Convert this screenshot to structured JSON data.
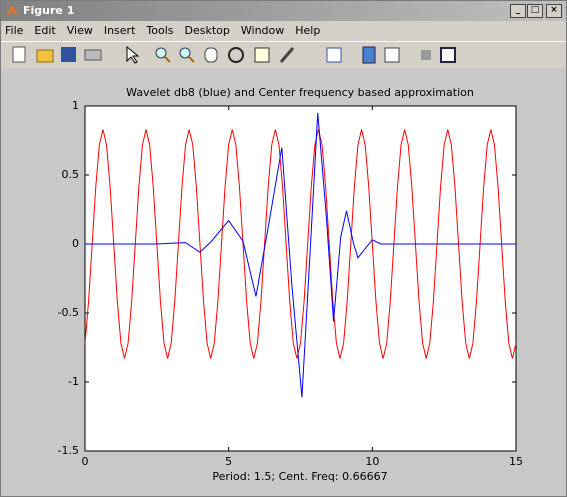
{
  "window": {
    "title": "Figure 1",
    "menu": [
      "File",
      "Edit",
      "View",
      "Insert",
      "Tools",
      "Desktop",
      "Window",
      "Help"
    ]
  },
  "chart_data": {
    "type": "line",
    "title": "Wavelet db8 (blue) and Center frequency based approximation",
    "xlabel": "Period: 1.5; Cent. Freq: 0.66667",
    "xlim": [
      0,
      15
    ],
    "ylim": [
      -1.5,
      1
    ],
    "xticks": [
      0,
      5,
      10,
      15
    ],
    "yticks": [
      -1.5,
      -1,
      -0.5,
      0,
      0.5,
      1
    ],
    "series": [
      {
        "color": "#ff0000",
        "x": [
          0,
          0.125,
          0.25,
          0.375,
          0.5,
          0.625,
          0.75,
          0.875,
          1,
          1.125,
          1.25,
          1.375,
          1.5,
          1.625,
          1.75,
          1.875,
          2,
          2.125,
          2.25,
          2.375,
          2.5,
          2.625,
          2.75,
          2.875,
          3,
          3.125,
          3.25,
          3.375,
          3.5,
          3.625,
          3.75,
          3.875,
          4,
          4.125,
          4.25,
          4.375,
          4.5,
          4.625,
          4.75,
          4.875,
          5,
          5.125,
          5.25,
          5.375,
          5.5,
          5.625,
          5.75,
          5.875,
          6,
          6.125,
          6.25,
          6.375,
          6.5,
          6.625,
          6.75,
          6.875,
          7,
          7.125,
          7.25,
          7.375,
          7.5,
          7.625,
          7.75,
          7.875,
          8,
          8.125,
          8.25,
          8.375,
          8.5,
          8.625,
          8.75,
          8.875,
          9,
          9.125,
          9.25,
          9.375,
          9.5,
          9.625,
          9.75,
          9.875,
          10,
          10.125,
          10.25,
          10.375,
          10.5,
          10.625,
          10.75,
          10.875,
          11,
          11.125,
          11.25,
          11.375,
          11.5,
          11.625,
          11.75,
          11.875,
          12,
          12.125,
          12.25,
          12.375,
          12.5,
          12.625,
          12.75,
          12.875,
          13,
          13.125,
          13.25,
          13.375,
          13.5,
          13.625,
          13.75,
          13.875,
          14,
          14.125,
          14.25,
          14.375,
          14.5,
          14.625,
          14.75,
          14.875,
          15
        ],
        "values": [
          -0.719,
          -0.415,
          0,
          0.415,
          0.719,
          0.83,
          0.719,
          0.415,
          0,
          -0.415,
          -0.719,
          -0.83,
          -0.719,
          -0.415,
          0,
          0.415,
          0.719,
          0.83,
          0.719,
          0.415,
          0,
          -0.415,
          -0.719,
          -0.83,
          -0.719,
          -0.415,
          0,
          0.415,
          0.719,
          0.83,
          0.719,
          0.415,
          0,
          -0.415,
          -0.719,
          -0.83,
          -0.719,
          -0.415,
          0,
          0.415,
          0.719,
          0.83,
          0.719,
          0.415,
          0,
          -0.415,
          -0.719,
          -0.83,
          -0.719,
          -0.415,
          0,
          0.415,
          0.719,
          0.83,
          0.719,
          0.415,
          0,
          -0.415,
          -0.719,
          -0.83,
          -0.719,
          -0.415,
          0,
          0.415,
          0.719,
          0.83,
          0.719,
          0.415,
          0,
          -0.415,
          -0.719,
          -0.83,
          -0.719,
          -0.415,
          0,
          0.415,
          0.719,
          0.83,
          0.719,
          0.415,
          0,
          -0.415,
          -0.719,
          -0.83,
          -0.719,
          -0.415,
          0,
          0.415,
          0.719,
          0.83,
          0.719,
          0.415,
          0,
          -0.415,
          -0.719,
          -0.83,
          -0.719,
          -0.415,
          0,
          0.415,
          0.719,
          0.83,
          0.719,
          0.415,
          0,
          -0.415,
          -0.719,
          -0.83,
          -0.719,
          -0.415,
          0,
          0.415,
          0.719,
          0.83,
          0.719,
          0.415,
          0,
          -0.415,
          -0.719,
          -0.83,
          -0.719
        ]
      },
      {
        "color": "#0000ff",
        "x": [
          0,
          2.5,
          3,
          3.5,
          4,
          4.4,
          5,
          5.5,
          5.95,
          6.4,
          6.85,
          7.2,
          7.55,
          7.85,
          8.1,
          8.4,
          8.65,
          8.9,
          9.1,
          9.35,
          9.5,
          9.8,
          10,
          10.3,
          15
        ],
        "values": [
          0,
          0,
          0.005,
          0.01,
          -0.06,
          0.02,
          0.17,
          0.02,
          -0.38,
          0.15,
          0.7,
          -0.3,
          -1.11,
          0,
          0.95,
          0.2,
          -0.56,
          0.05,
          0.24,
          0,
          -0.1,
          -0.02,
          0.03,
          0,
          0
        ]
      }
    ]
  }
}
